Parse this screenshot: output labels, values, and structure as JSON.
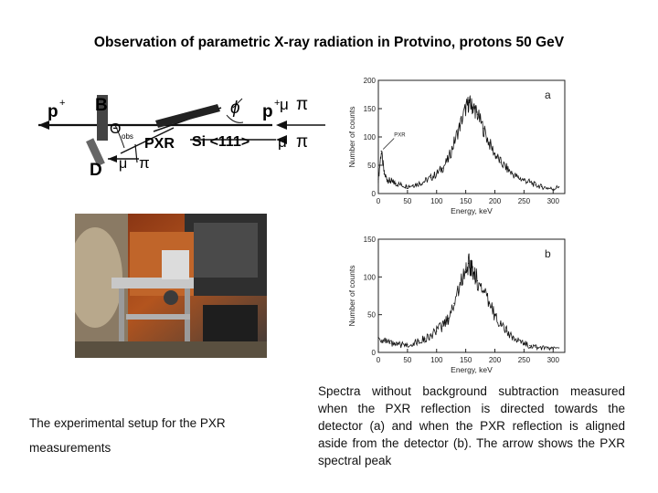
{
  "title": "Observation of parametric X-ray radiation in Protvino, protons 50 GeV",
  "diagram": {
    "p_left": "p",
    "sup_plus_left": "+",
    "label_B": "B",
    "label_D": "D",
    "theta": "Θ",
    "theta_sub": "obs",
    "label_PXR": "PXR",
    "crystal": "Si <111>",
    "phi": "ϕ",
    "p_right": "p",
    "sup_plus_right": "+",
    "mu_right": "μ",
    "pi_right": "π",
    "mu_lower": "μ",
    "pi_lower": "π",
    "mu_D": "μ",
    "pi_D": "π"
  },
  "caption_left": "The experimental setup for the PXR measurements",
  "caption_right": "Spectra without background subtraction measured when the PXR reflection is directed towards the detector (a) and when the PXR reflection is aligned aside from the detector (b). The arrow shows the PXR spectral peak",
  "chart_data": [
    {
      "type": "line",
      "panel": "a",
      "xlabel": "Energy, keV",
      "ylabel": "Number of counts",
      "xlim": [
        0,
        320
      ],
      "ylim": [
        0,
        200
      ],
      "xticks": [
        0,
        50,
        100,
        150,
        200,
        250,
        300
      ],
      "yticks": [
        0,
        50,
        100,
        150,
        200
      ],
      "annotation": "PXR",
      "x": [
        0,
        5,
        10,
        15,
        20,
        25,
        30,
        40,
        50,
        60,
        70,
        80,
        90,
        100,
        110,
        120,
        130,
        140,
        150,
        155,
        160,
        165,
        170,
        180,
        190,
        200,
        210,
        220,
        230,
        240,
        250,
        260,
        270,
        280,
        290,
        300,
        310
      ],
      "y": [
        25,
        75,
        35,
        25,
        22,
        20,
        18,
        15,
        13,
        15,
        18,
        22,
        28,
        35,
        45,
        60,
        90,
        120,
        150,
        160,
        155,
        150,
        140,
        115,
        90,
        70,
        55,
        45,
        35,
        28,
        24,
        20,
        15,
        12,
        10,
        8,
        12
      ]
    },
    {
      "type": "line",
      "panel": "b",
      "xlabel": "Energy, keV",
      "ylabel": "Number of counts",
      "xlim": [
        0,
        320
      ],
      "ylim": [
        0,
        150
      ],
      "xticks": [
        0,
        50,
        100,
        150,
        200,
        250,
        300
      ],
      "yticks": [
        0,
        50,
        100,
        150
      ],
      "x": [
        0,
        10,
        20,
        30,
        40,
        50,
        60,
        70,
        80,
        90,
        100,
        110,
        120,
        130,
        140,
        150,
        155,
        160,
        165,
        170,
        180,
        190,
        200,
        210,
        220,
        230,
        240,
        250,
        260,
        270,
        280,
        290,
        300,
        310
      ],
      "y": [
        20,
        15,
        12,
        10,
        10,
        10,
        12,
        15,
        18,
        22,
        28,
        35,
        45,
        65,
        90,
        110,
        118,
        112,
        105,
        95,
        80,
        65,
        50,
        38,
        28,
        20,
        15,
        12,
        9,
        7,
        6,
        5,
        5,
        6
      ]
    }
  ]
}
